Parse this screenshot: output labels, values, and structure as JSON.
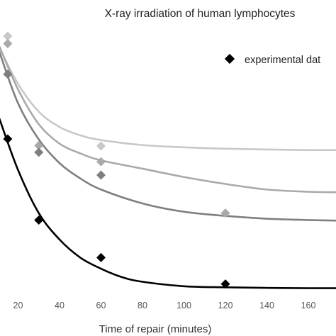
{
  "chart_data": {
    "type": "scatter",
    "title": "X-ray irradiation of human lymphocytes",
    "xlabel": "Time of repair (minutes)",
    "ylabel": "",
    "x_ticks": [
      20,
      40,
      60,
      80,
      100,
      120,
      140,
      160
    ],
    "xlim": [
      11,
      176
    ],
    "ylim": [
      0,
      1
    ],
    "legend": {
      "position": "top-right",
      "label": "experimental data",
      "visible_text": "experimental dat"
    },
    "series": [
      {
        "color": "#c8c8c8",
        "points": [
          {
            "x": 15,
            "y": 0.972
          },
          {
            "x": 60,
            "y": 0.577
          }
        ],
        "fit": [
          [
            11,
            0.93
          ],
          [
            20,
            0.8
          ],
          [
            30,
            0.7
          ],
          [
            40,
            0.645
          ],
          [
            50,
            0.615
          ],
          [
            60,
            0.598
          ],
          [
            80,
            0.58
          ],
          [
            100,
            0.572
          ],
          [
            120,
            0.567
          ],
          [
            140,
            0.564
          ],
          [
            160,
            0.562
          ],
          [
            176,
            0.562
          ]
        ]
      },
      {
        "color": "#a9a9a9",
        "points": [
          {
            "x": 15,
            "y": 0.945
          },
          {
            "x": 30,
            "y": 0.578
          },
          {
            "x": 60,
            "y": 0.52
          },
          {
            "x": 120,
            "y": 0.335
          }
        ],
        "fit": [
          [
            11,
            0.935
          ],
          [
            20,
            0.78
          ],
          [
            30,
            0.655
          ],
          [
            40,
            0.585
          ],
          [
            50,
            0.55
          ],
          [
            60,
            0.525
          ],
          [
            80,
            0.495
          ],
          [
            100,
            0.465
          ],
          [
            120,
            0.44
          ],
          [
            140,
            0.42
          ],
          [
            160,
            0.412
          ],
          [
            176,
            0.41
          ]
        ]
      },
      {
        "color": "#7f7f7f",
        "points": [
          {
            "x": 15,
            "y": 0.835
          },
          {
            "x": 30,
            "y": 0.554
          },
          {
            "x": 60,
            "y": 0.472
          }
        ],
        "fit": [
          [
            11,
            0.915
          ],
          [
            20,
            0.73
          ],
          [
            30,
            0.6
          ],
          [
            40,
            0.515
          ],
          [
            50,
            0.46
          ],
          [
            60,
            0.42
          ],
          [
            80,
            0.37
          ],
          [
            100,
            0.34
          ],
          [
            120,
            0.325
          ],
          [
            140,
            0.315
          ],
          [
            160,
            0.31
          ],
          [
            176,
            0.308
          ]
        ]
      },
      {
        "color": "#000000",
        "points": [
          {
            "x": 15,
            "y": 0.602
          },
          {
            "x": 30,
            "y": 0.31
          },
          {
            "x": 60,
            "y": 0.175
          },
          {
            "x": 120,
            "y": 0.08
          }
        ],
        "fit": [
          [
            11,
            0.675
          ],
          [
            20,
            0.49
          ],
          [
            30,
            0.335
          ],
          [
            40,
            0.24
          ],
          [
            50,
            0.175
          ],
          [
            60,
            0.135
          ],
          [
            70,
            0.105
          ],
          [
            80,
            0.088
          ],
          [
            100,
            0.072
          ],
          [
            120,
            0.068
          ],
          [
            140,
            0.066
          ],
          [
            160,
            0.065
          ],
          [
            176,
            0.065
          ]
        ]
      }
    ]
  }
}
